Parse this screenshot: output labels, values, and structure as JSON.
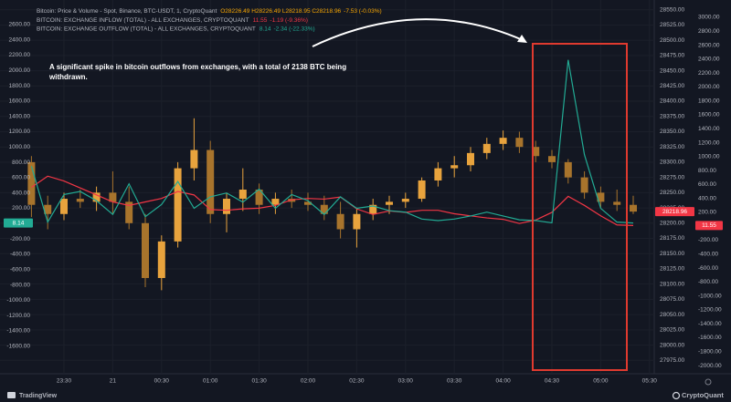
{
  "chart_data": {
    "type": "candlestick",
    "name": "Bitcoin: Price & Volume - Spot, Binance, BTC-USDT, 1, CryptoQuant",
    "ohlc_label": "O28226.49 H28226.49 L28218.95 C28218.96",
    "change_label": "-7.53 (-0.03%)",
    "annotation": "A significant spike in bitcoin outflows from exchanges, with a total of 2138 BTC being withdrawn.",
    "up_color": "#e8a33d",
    "down_color": "#a8742c",
    "categories": [
      null,
      null,
      "23:30",
      null,
      null,
      "21",
      null,
      null,
      "00:30",
      null,
      null,
      "01:00",
      null,
      null,
      "01:30",
      null,
      null,
      "02:00",
      null,
      null,
      "02:30",
      null,
      null,
      "03:00",
      null,
      null,
      "03:30",
      null,
      null,
      "04:00",
      null,
      null,
      "04:30",
      null,
      null,
      "05:00",
      null,
      null,
      "05:30"
    ],
    "open": [
      28300,
      28230,
      28215,
      28240,
      28235,
      28250,
      28235,
      28200,
      28110,
      28170,
      28290,
      28320,
      28215,
      28240,
      28255,
      28230,
      28240,
      28235,
      28230,
      28215,
      28190,
      28215,
      28230,
      28235,
      28240,
      28270,
      28290,
      28295,
      28315,
      28330,
      28340,
      28325,
      28310,
      28300,
      28275,
      28250,
      28235,
      28230,
      null
    ],
    "high": [
      28310,
      28245,
      28250,
      28255,
      28260,
      28285,
      28260,
      28215,
      28180,
      28300,
      28372,
      28335,
      28250,
      28290,
      28265,
      28250,
      28255,
      28250,
      28245,
      28235,
      28225,
      28240,
      28245,
      28250,
      28275,
      28300,
      28310,
      28325,
      28340,
      28352,
      28350,
      28335,
      28320,
      28305,
      28285,
      28260,
      28255,
      28245,
      null
    ],
    "low": [
      28210,
      28190,
      28205,
      28225,
      28220,
      28215,
      28190,
      28095,
      28090,
      28160,
      28270,
      28200,
      28185,
      28220,
      28215,
      28215,
      28225,
      28220,
      28205,
      28175,
      28160,
      28205,
      28215,
      28225,
      28235,
      28260,
      28275,
      28285,
      28305,
      28320,
      28315,
      28300,
      28290,
      28265,
      28240,
      28225,
      28220,
      28215,
      null
    ],
    "close": [
      28230,
      28215,
      28240,
      28235,
      28250,
      28235,
      28200,
      28110,
      28170,
      28290,
      28320,
      28215,
      28240,
      28255,
      28230,
      28240,
      28235,
      28230,
      28215,
      28190,
      28215,
      28230,
      28235,
      28240,
      28270,
      28290,
      28295,
      28315,
      28330,
      28340,
      28325,
      28310,
      28300,
      28275,
      28250,
      28235,
      28230,
      28218.96,
      null
    ],
    "ylim": [
      27953,
      28566
    ],
    "yticks": [
      {
        "value": 27975,
        "label": "27975.00"
      },
      {
        "value": 28000,
        "label": "28000.00"
      },
      {
        "value": 28025,
        "label": "28025.00"
      },
      {
        "value": 28050,
        "label": "28050.00"
      },
      {
        "value": 28075,
        "label": "28075.00"
      },
      {
        "value": 28100,
        "label": "28100.00"
      },
      {
        "value": 28125,
        "label": "28125.00"
      },
      {
        "value": 28150,
        "label": "28150.00"
      },
      {
        "value": 28175,
        "label": "28175.00"
      },
      {
        "value": 28200,
        "label": "28200.00"
      },
      {
        "value": 28225,
        "label": "28225.00"
      },
      {
        "value": 28250,
        "label": "28250.00"
      },
      {
        "value": 28275,
        "label": "28275.00"
      },
      {
        "value": 28300,
        "label": "28300.00"
      },
      {
        "value": 28325,
        "label": "28325.00"
      },
      {
        "value": 28350,
        "label": "28350.00"
      },
      {
        "value": 28375,
        "label": "28375.00"
      },
      {
        "value": 28400,
        "label": "28400.00"
      },
      {
        "value": 28425,
        "label": "28425.00"
      },
      {
        "value": 28450,
        "label": "28450.00"
      },
      {
        "value": 28475,
        "label": "28475.00"
      },
      {
        "value": 28500,
        "label": "28500.00"
      },
      {
        "value": 28525,
        "label": "28525.00"
      },
      {
        "value": 28550,
        "label": "28550.00"
      }
    ],
    "series": [
      {
        "name": "BITCOIN: EXCHANGE INFLOW (TOTAL) - ALL EXCHANGES, CRYPTOQUANT",
        "color": "#f23645",
        "axis": "y3",
        "change_label": "-1.19 (-9.36%)",
        "values": [
          560,
          720,
          650,
          550,
          450,
          350,
          300,
          350,
          400,
          500,
          450,
          240,
          230,
          250,
          260,
          300,
          380,
          400,
          390,
          420,
          250,
          170,
          220,
          200,
          230,
          230,
          180,
          150,
          120,
          100,
          40,
          90,
          200,
          430,
          300,
          150,
          20,
          11.55,
          null
        ]
      },
      {
        "name": "BITCOIN: EXCHANGE OUTFLOW (TOTAL) - ALL EXCHANGES, CRYPTOQUANT",
        "color": "#22ab94",
        "axis": "y2",
        "change_label": "-2.34 (-22.33%)",
        "values": [
          750,
          20,
          380,
          420,
          300,
          120,
          520,
          90,
          250,
          550,
          200,
          350,
          400,
          280,
          450,
          200,
          380,
          300,
          120,
          350,
          200,
          230,
          170,
          150,
          60,
          40,
          60,
          100,
          150,
          100,
          50,
          40,
          10,
          2138,
          900,
          200,
          20,
          8.14,
          null
        ]
      }
    ],
    "y2lim": [
      -1960,
      2920
    ],
    "y2ticks": [
      {
        "value": -1600,
        "label": "-1600.00"
      },
      {
        "value": -1400,
        "label": "-1400.00"
      },
      {
        "value": -1200,
        "label": "-1200.00"
      },
      {
        "value": -1000,
        "label": "-1000.00"
      },
      {
        "value": -800,
        "label": "-800.00"
      },
      {
        "value": -600,
        "label": "-600.00"
      },
      {
        "value": -400,
        "label": "-400.00"
      },
      {
        "value": -200,
        "label": "-200.00"
      },
      {
        "value": 0,
        "label": "0.00"
      },
      {
        "value": 200,
        "label": "200.00"
      },
      {
        "value": 400,
        "label": "400.00"
      },
      {
        "value": 600,
        "label": "600.00"
      },
      {
        "value": 800,
        "label": "800.00"
      },
      {
        "value": 1000,
        "label": "1000.00"
      },
      {
        "value": 1200,
        "label": "1200.00"
      },
      {
        "value": 1400,
        "label": "1400.00"
      },
      {
        "value": 1600,
        "label": "1600.00"
      },
      {
        "value": 1800,
        "label": "1800.00"
      },
      {
        "value": 2000,
        "label": "2000.00"
      },
      {
        "value": 2200,
        "label": "2200.00"
      },
      {
        "value": 2400,
        "label": "2400.00"
      },
      {
        "value": 2600,
        "label": "2600.00"
      }
    ],
    "y3lim": [
      -2117,
      3249
    ],
    "y3ticks": [
      {
        "value": -2000,
        "label": "-2000.00"
      },
      {
        "value": -1800,
        "label": "-1800.00"
      },
      {
        "value": -1600,
        "label": "-1600.00"
      },
      {
        "value": -1400,
        "label": "-1400.00"
      },
      {
        "value": -1200,
        "label": "-1200.00"
      },
      {
        "value": -1000,
        "label": "-1000.00"
      },
      {
        "value": -800,
        "label": "-800.00"
      },
      {
        "value": -600,
        "label": "-600.00"
      },
      {
        "value": -400,
        "label": "-400.00"
      },
      {
        "value": -200,
        "label": "-200.00"
      },
      {
        "value": 0,
        "label": "0.00"
      },
      {
        "value": 200,
        "label": "200.00"
      },
      {
        "value": 400,
        "label": "400.00"
      },
      {
        "value": 600,
        "label": "600.00"
      },
      {
        "value": 800,
        "label": "800.00"
      },
      {
        "value": 1000,
        "label": "1000.00"
      },
      {
        "value": 1200,
        "label": "1200.00"
      },
      {
        "value": 1400,
        "label": "1400.00"
      },
      {
        "value": 1600,
        "label": "1600.00"
      },
      {
        "value": 1800,
        "label": "1800.00"
      },
      {
        "value": 2000,
        "label": "2000.00"
      },
      {
        "value": 2200,
        "label": "2200.00"
      },
      {
        "value": 2400,
        "label": "2400.00"
      },
      {
        "value": 2600,
        "label": "2600.00"
      },
      {
        "value": 2800,
        "label": "2800.00"
      },
      {
        "value": 3000,
        "label": "3000.00"
      }
    ],
    "grid": true
  },
  "footer": {
    "left": "TradingView",
    "right": "CryptoQuant"
  }
}
